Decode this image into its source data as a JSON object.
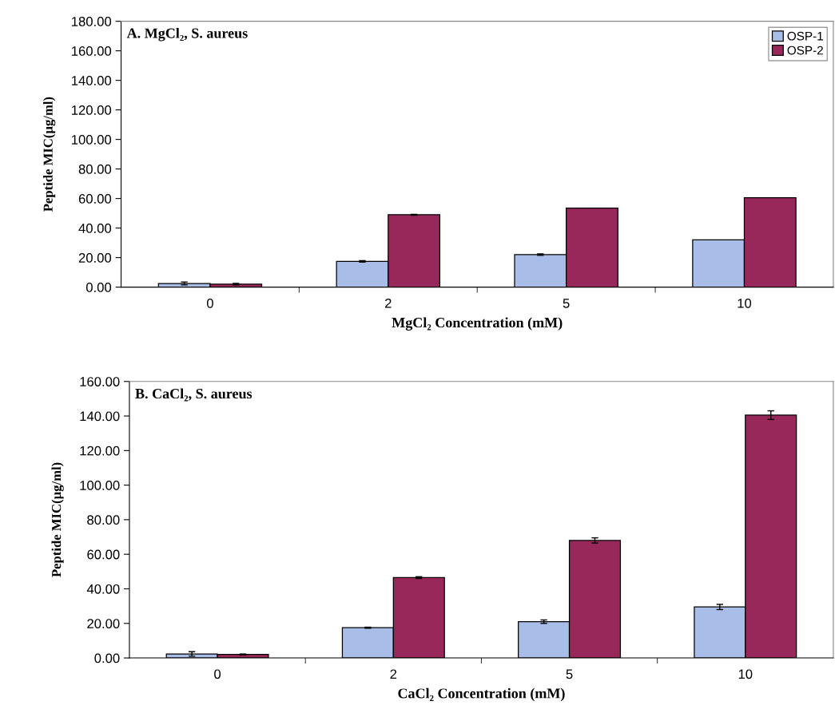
{
  "chart_data": [
    {
      "type": "bar",
      "title": "A. MgCl₂, S. aureus",
      "xlabel": "MgCl₂ Concentration (mM)",
      "ylabel": "Peptide MIC(µg/ml)",
      "categories": [
        "0",
        "2",
        "5",
        "10"
      ],
      "series": [
        {
          "name": "OSP-1",
          "color": "#a9bde9",
          "values": [
            2.5,
            17.5,
            22,
            32
          ],
          "errors": [
            1,
            0.5,
            0.5,
            null
          ]
        },
        {
          "name": "OSP-2",
          "color": "#99285a",
          "values": [
            2,
            49,
            53.5,
            60.5
          ],
          "errors": [
            0.5,
            0.3,
            null,
            null
          ]
        }
      ],
      "ylim": [
        0,
        180
      ],
      "yticks": [
        {
          "value": 0,
          "label": "0.00"
        },
        {
          "value": 20,
          "label": "20.00"
        },
        {
          "value": 40,
          "label": "40.00"
        },
        {
          "value": 60,
          "label": "60.00"
        },
        {
          "value": 80,
          "label": "80.00"
        },
        {
          "value": 100,
          "label": "100.00"
        },
        {
          "value": 120,
          "label": "120.00"
        },
        {
          "value": 140,
          "label": "140.00"
        },
        {
          "value": 160,
          "label": "160.00"
        },
        {
          "value": 180,
          "label": "180.00"
        }
      ],
      "legend": "top right"
    },
    {
      "type": "bar",
      "title": "B. CaCl₂, S. aureus",
      "xlabel": "CaCl₂ Concentration (mM)",
      "ylabel": "Peptide MIC(µg/ml)",
      "categories": [
        "0",
        "2",
        "5",
        "10"
      ],
      "series": [
        {
          "color": "#a9bde9",
          "values": [
            2.3,
            17.5,
            21,
            29.5
          ],
          "errors": [
            1.3,
            0.3,
            1,
            1.5
          ]
        },
        {
          "color": "#99285a",
          "values": [
            2,
            46.5,
            68,
            140.5
          ],
          "errors": [
            0.3,
            0.5,
            1.5,
            2.5
          ]
        }
      ],
      "ylim": [
        0,
        160
      ],
      "yticks": [
        {
          "value": 0,
          "label": "0.00"
        },
        {
          "value": 20,
          "label": "20.00"
        },
        {
          "value": 40,
          "label": "40.00"
        },
        {
          "value": 60,
          "label": "60.00"
        },
        {
          "value": 80,
          "label": "80.00"
        },
        {
          "value": 100,
          "label": "100.00"
        },
        {
          "value": 120,
          "label": "120.00"
        },
        {
          "value": 140,
          "label": "140.00"
        },
        {
          "value": 160,
          "label": "160.00"
        }
      ]
    }
  ]
}
